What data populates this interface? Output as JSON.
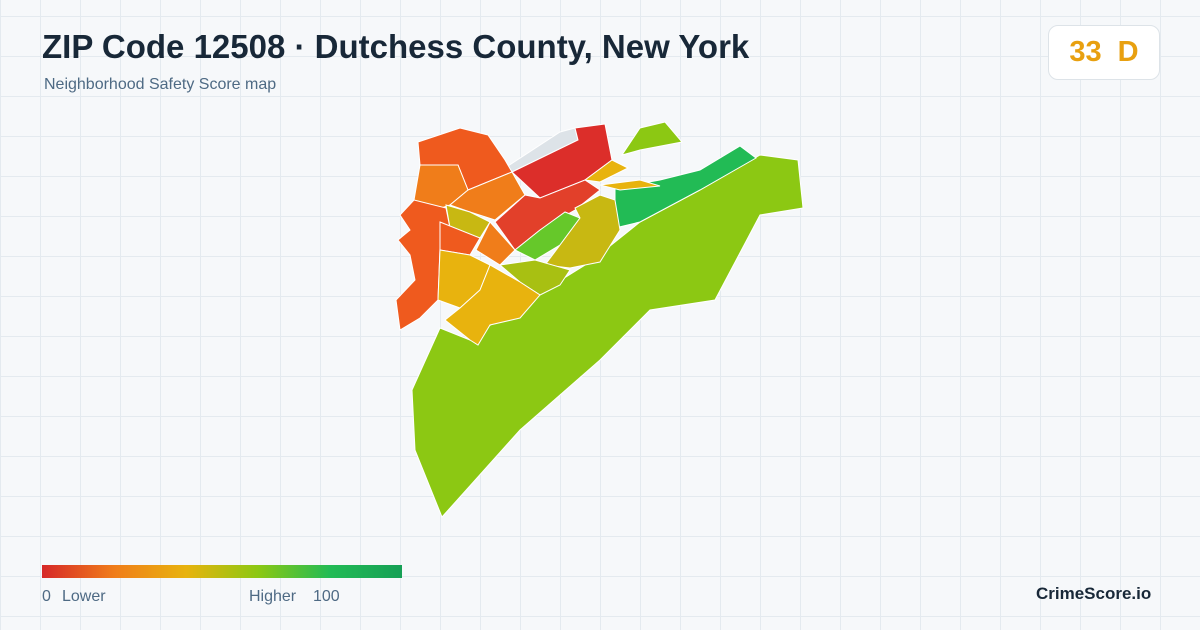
{
  "header": {
    "title": "ZIP Code 12508 · Dutchess County, New York",
    "subtitle": "Neighborhood Safety Score map"
  },
  "score": {
    "value": 33,
    "grade": "D"
  },
  "legend": {
    "min": 0,
    "min_label": "Lower",
    "max_label": "Higher",
    "max": 100
  },
  "brand": "CrimeScore.io"
}
